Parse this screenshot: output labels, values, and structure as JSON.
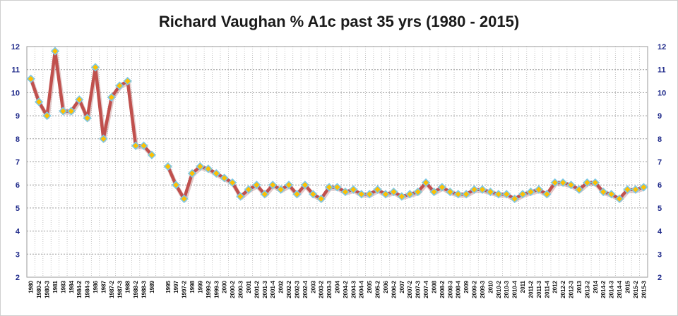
{
  "chart_data": {
    "type": "line",
    "title": "Richard Vaughan % A1c past 35 yrs (1980 - 2015)",
    "xlabel": "",
    "ylabel": "",
    "ylim": [
      2,
      12
    ],
    "yticks": [
      2,
      3,
      4,
      5,
      6,
      7,
      8,
      9,
      10,
      11,
      12
    ],
    "grid": true,
    "legend": "none",
    "colors": {
      "line": "#c0504d",
      "marker": "#ffc000",
      "marker_edge": "#7ec8e3",
      "axis_text": "#1f2a8a"
    },
    "categories": [
      "1980",
      "1980-2",
      "1980-3",
      "1981",
      "1983",
      "1984",
      "1984-2",
      "1984-3",
      "1986",
      "1987",
      "1987-2",
      "1987-3",
      "1988",
      "1988-2",
      "1988-3",
      "1989",
      "",
      "1995",
      "1997",
      "1997-2",
      "1998",
      "1999",
      "1999-2",
      "1999-3",
      "2000",
      "2000-2",
      "2000-3",
      "2001",
      "2001-2",
      "2001-3",
      "2001-4",
      "2002",
      "2002-2",
      "2002-3",
      "2002-4",
      "2003",
      "2003-2",
      "2003-3",
      "2004",
      "2004-2",
      "2004-3",
      "2004-4",
      "2005",
      "2005-2",
      "2006",
      "2006-2",
      "2007",
      "2007-2",
      "2007-3",
      "2007-4",
      "2008",
      "2008-2",
      "2008-3",
      "2008-4",
      "2009",
      "2009-2",
      "2009-3",
      "2010",
      "2010-2",
      "2010-3",
      "2010-4",
      "2011",
      "2011-2",
      "2011-3",
      "2011-4",
      "2012",
      "2012-2",
      "2012-3",
      "2013",
      "2013-2",
      "2014",
      "2014-2",
      "2014-3",
      "2014-4",
      "2015",
      "2015-2",
      "2015-3"
    ],
    "series": [
      {
        "values": [
          10.6,
          9.6,
          9.0,
          11.8,
          9.2,
          9.2,
          9.7,
          8.9,
          11.1,
          8.0,
          9.8,
          10.3,
          10.5,
          7.7,
          7.7,
          7.3,
          null,
          6.8,
          6.0,
          5.4,
          6.5,
          6.8,
          6.7,
          6.5,
          6.3,
          6.1,
          5.5,
          5.8,
          6.0,
          5.6,
          6.0,
          5.8,
          6.0,
          5.6,
          6.0,
          5.6,
          5.4,
          5.9,
          5.9,
          5.7,
          5.8,
          5.6,
          5.6,
          5.8,
          5.6,
          5.7,
          5.5,
          5.6,
          5.7,
          6.1,
          5.7,
          5.9,
          5.7,
          5.6,
          5.6,
          5.8,
          5.8,
          5.7,
          5.6,
          5.6,
          5.4,
          5.6,
          5.7,
          5.8,
          5.6,
          6.1,
          6.1,
          6.0,
          5.8,
          6.1,
          6.1,
          5.7,
          5.6,
          5.4,
          5.8,
          5.8,
          5.9
        ]
      }
    ]
  }
}
